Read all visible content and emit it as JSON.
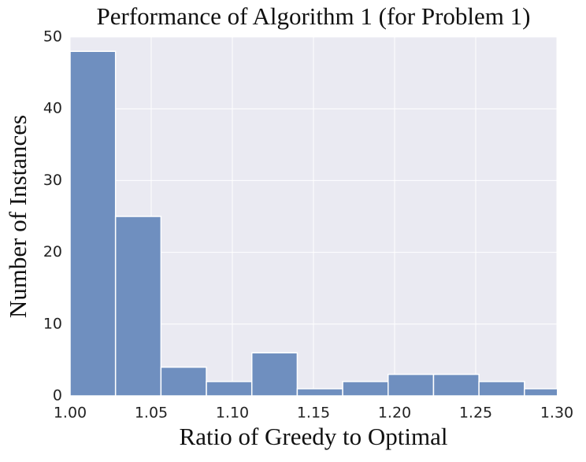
{
  "chart_data": {
    "type": "histogram",
    "title": "Performance of Algorithm 1 (for Problem 1)",
    "xlabel": "Ratio of Greedy to Optimal",
    "ylabel": "Number of Instances",
    "bins": [
      1.0,
      1.028,
      1.056,
      1.084,
      1.112,
      1.14,
      1.168,
      1.196,
      1.224,
      1.252,
      1.28,
      1.308
    ],
    "values": [
      48,
      25,
      4,
      2,
      6,
      1,
      2,
      3,
      3,
      2,
      1
    ],
    "color": "#6f8fbf",
    "xlim": [
      1.0,
      1.3
    ],
    "xticks": [
      {
        "value": 1.0,
        "label": "1.00"
      },
      {
        "value": 1.05,
        "label": "1.05"
      },
      {
        "value": 1.1,
        "label": "1.10"
      },
      {
        "value": 1.15,
        "label": "1.15"
      },
      {
        "value": 1.2,
        "label": "1.20"
      },
      {
        "value": 1.25,
        "label": "1.25"
      },
      {
        "value": 1.3,
        "label": "1.30"
      }
    ],
    "ylim": [
      0,
      50
    ],
    "yticks": [
      0,
      10,
      20,
      30,
      40,
      50
    ],
    "grid": true
  }
}
